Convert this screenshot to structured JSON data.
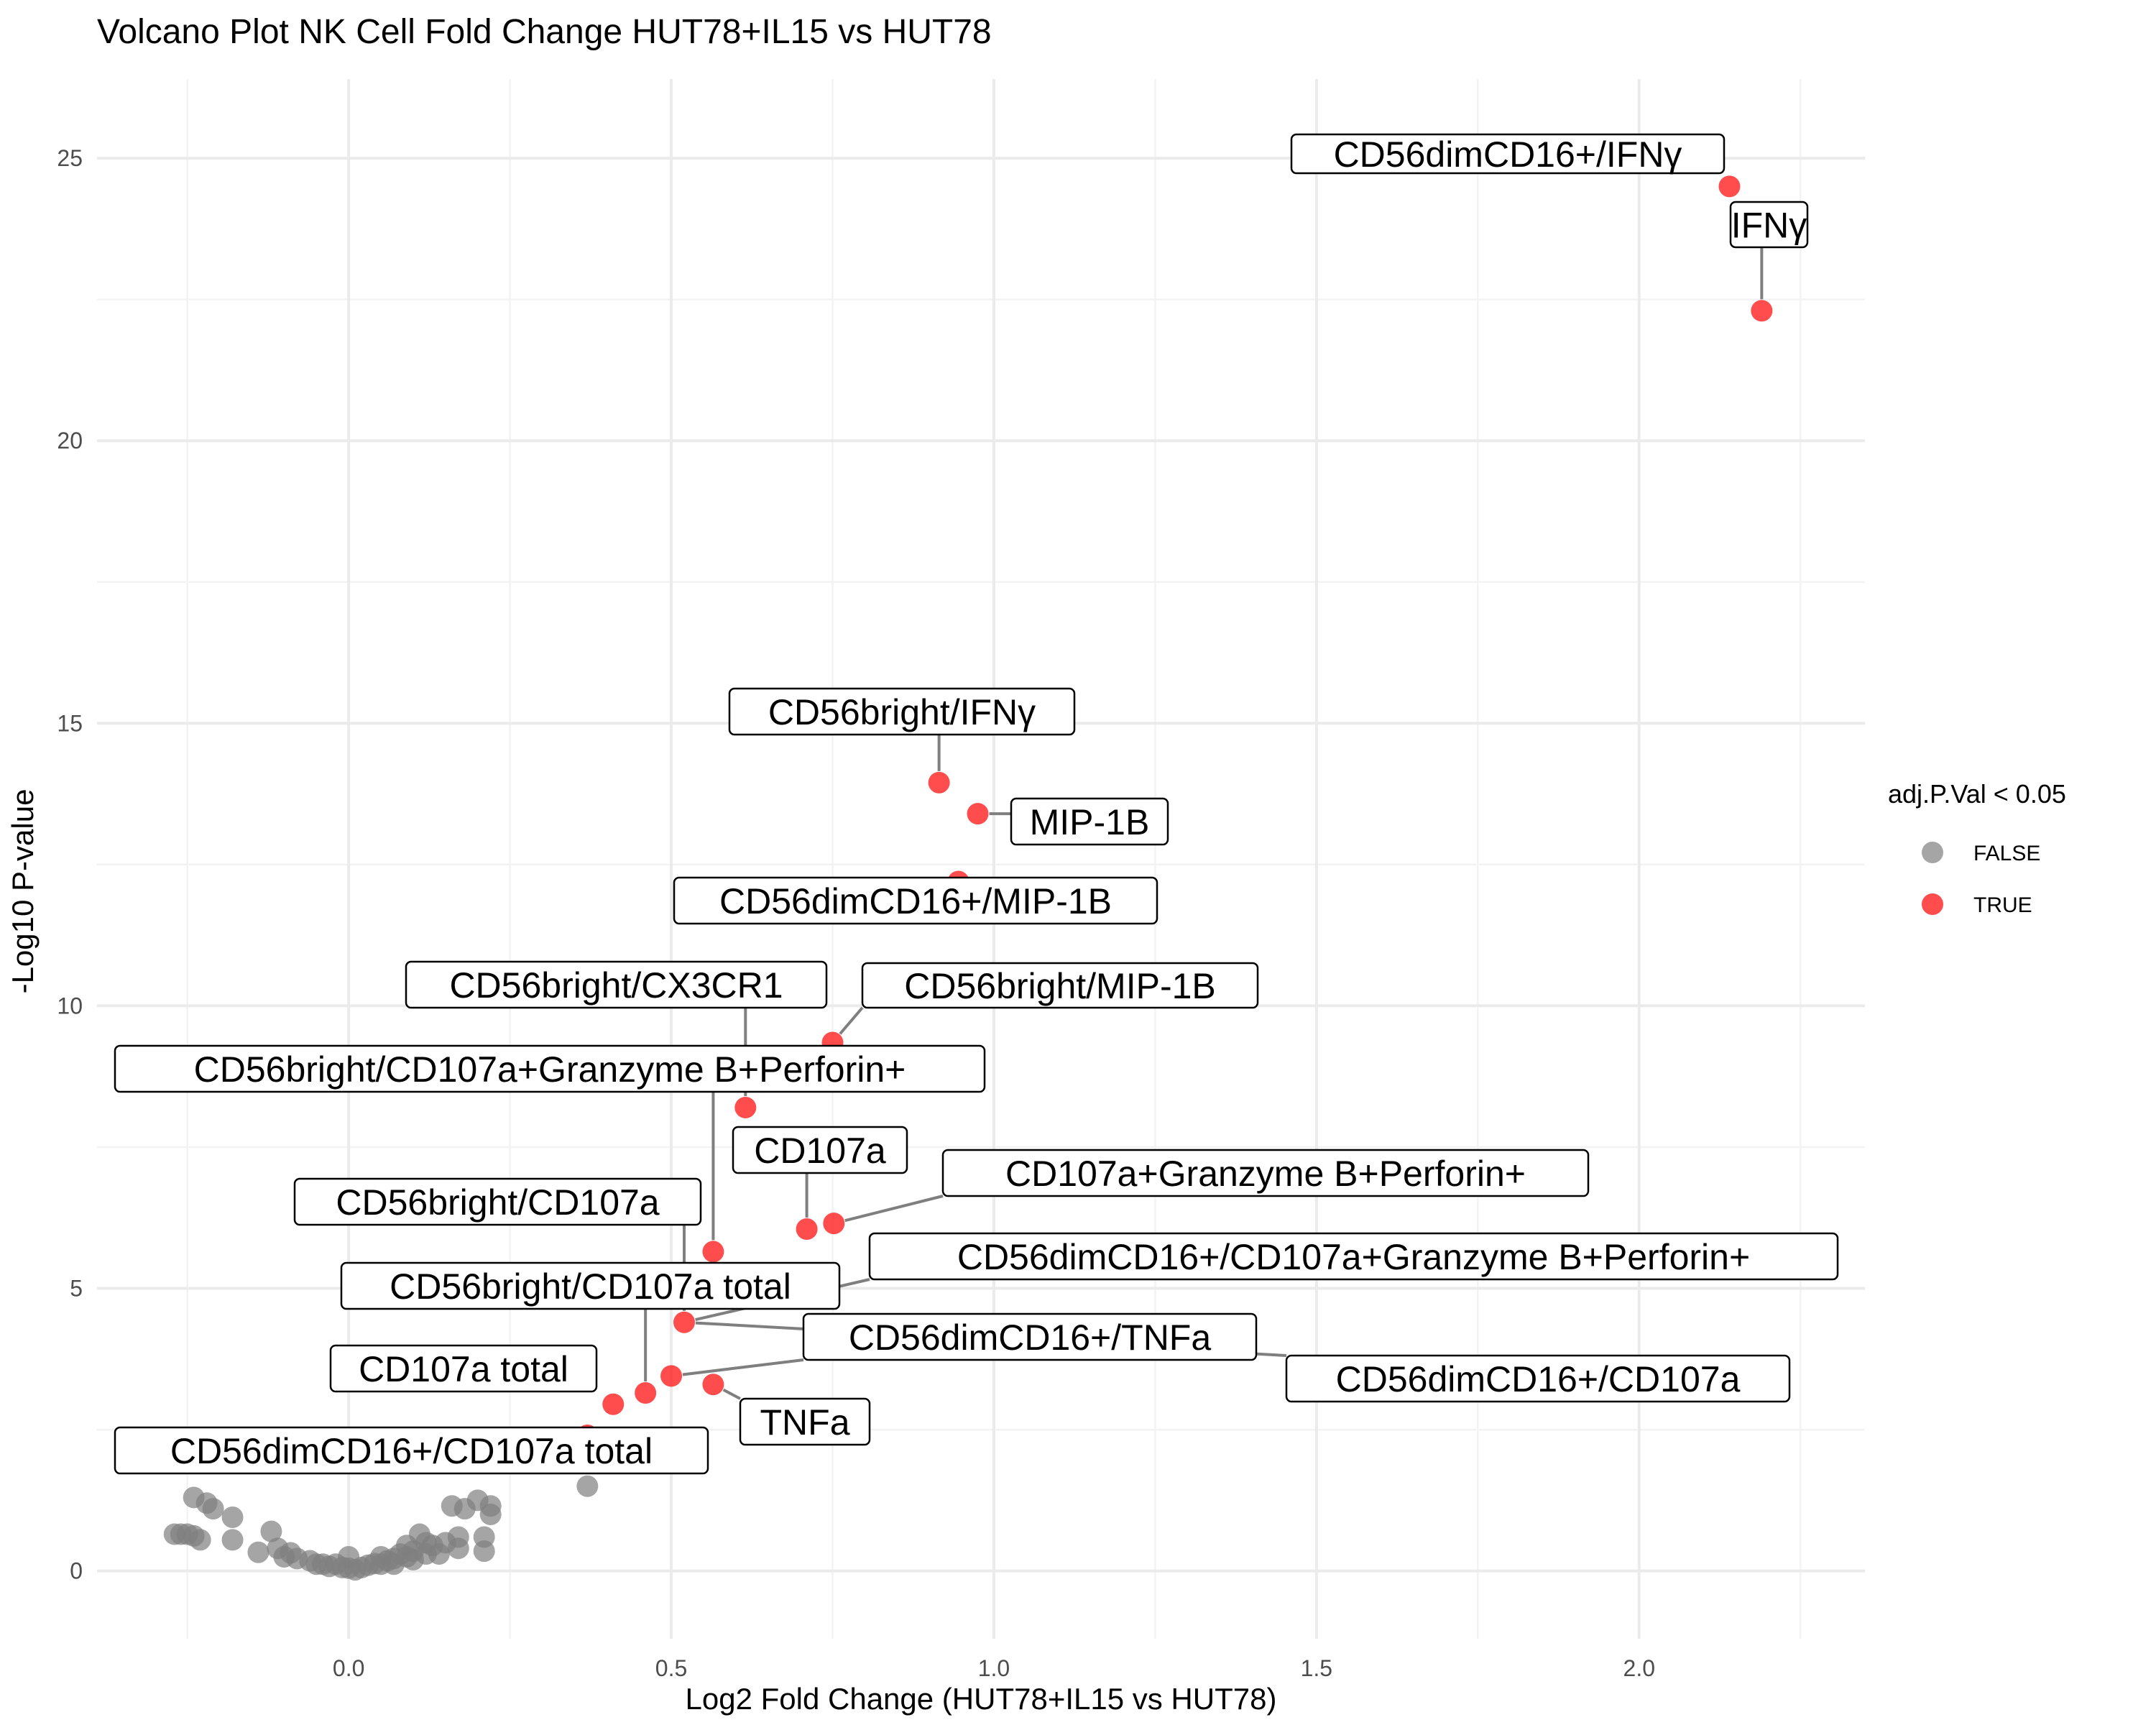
{
  "chart_data": {
    "type": "scatter",
    "title": "Volcano Plot NK Cell Fold Change  HUT78+IL15 vs HUT78",
    "xlabel": "Log2 Fold Change (HUT78+IL15 vs HUT78)",
    "ylabel": "-Log10 P-value",
    "xlim": [
      -0.39,
      2.35
    ],
    "ylim": [
      -1.2,
      26.4
    ],
    "x_ticks": [
      0.0,
      0.5,
      1.0,
      1.5,
      2.0
    ],
    "x_tick_labels": [
      "0.0",
      "0.5",
      "1.0",
      "1.5",
      "2.0"
    ],
    "y_ticks": [
      0,
      5,
      10,
      15,
      20,
      25
    ],
    "y_tick_labels": [
      "0",
      "5",
      "10",
      "15",
      "20",
      "25"
    ],
    "grid": true,
    "legend": {
      "title": "adj.P.Val < 0.05",
      "placement": "right",
      "entries": [
        {
          "label": "FALSE",
          "color": "#7f7f7f"
        },
        {
          "label": "TRUE",
          "color": "#ff0000"
        }
      ]
    },
    "colors": {
      "FALSE": "#7f7f7f",
      "TRUE": "#ff0000"
    },
    "series": [
      {
        "name": "FALSE",
        "points": [
          [
            -0.27,
            0.65
          ],
          [
            -0.26,
            0.65
          ],
          [
            -0.25,
            0.65
          ],
          [
            -0.24,
            0.62
          ],
          [
            -0.24,
            1.3
          ],
          [
            -0.23,
            0.55
          ],
          [
            -0.22,
            1.2
          ],
          [
            -0.21,
            1.1
          ],
          [
            -0.18,
            0.55
          ],
          [
            -0.18,
            0.95
          ],
          [
            -0.14,
            0.33
          ],
          [
            -0.12,
            0.7
          ],
          [
            -0.11,
            0.4
          ],
          [
            -0.1,
            0.25
          ],
          [
            -0.09,
            0.32
          ],
          [
            -0.08,
            0.22
          ],
          [
            -0.06,
            0.18
          ],
          [
            -0.05,
            0.12
          ],
          [
            -0.04,
            0.12
          ],
          [
            -0.03,
            0.08
          ],
          [
            -0.02,
            0.12
          ],
          [
            -0.01,
            0.06
          ],
          [
            0.0,
            0.25
          ],
          [
            0.0,
            0.05
          ],
          [
            0.01,
            0.02
          ],
          [
            0.02,
            0.06
          ],
          [
            0.03,
            0.1
          ],
          [
            0.04,
            0.13
          ],
          [
            0.05,
            0.12
          ],
          [
            0.05,
            0.25
          ],
          [
            0.06,
            0.18
          ],
          [
            0.07,
            0.22
          ],
          [
            0.07,
            0.12
          ],
          [
            0.08,
            0.3
          ],
          [
            0.09,
            0.25
          ],
          [
            0.09,
            0.45
          ],
          [
            0.1,
            0.35
          ],
          [
            0.1,
            0.2
          ],
          [
            0.11,
            0.65
          ],
          [
            0.12,
            0.5
          ],
          [
            0.12,
            0.3
          ],
          [
            0.13,
            0.45
          ],
          [
            0.14,
            0.3
          ],
          [
            0.15,
            0.5
          ],
          [
            0.16,
            1.15
          ],
          [
            0.17,
            0.4
          ],
          [
            0.17,
            0.6
          ],
          [
            0.18,
            1.1
          ],
          [
            0.2,
            1.25
          ],
          [
            0.21,
            0.35
          ],
          [
            0.21,
            0.6
          ],
          [
            0.22,
            1.15
          ],
          [
            0.22,
            1.0
          ],
          [
            0.37,
            1.5
          ]
        ]
      },
      {
        "name": "TRUE",
        "points": [
          [
            2.14,
            24.5
          ],
          [
            2.19,
            22.3
          ],
          [
            0.915,
            13.95
          ],
          [
            0.975,
            13.4
          ],
          [
            0.945,
            12.2
          ],
          [
            0.75,
            9.35
          ],
          [
            0.615,
            8.2
          ],
          [
            0.565,
            5.65
          ],
          [
            0.71,
            6.05
          ],
          [
            0.752,
            6.15
          ],
          [
            0.52,
            4.4
          ],
          [
            0.5,
            3.45
          ],
          [
            0.565,
            3.3
          ],
          [
            0.46,
            3.15
          ],
          [
            0.41,
            2.95
          ],
          [
            0.37,
            2.4
          ]
        ]
      }
    ],
    "labels": [
      {
        "text": "CD56dimCD16+/IFNγ",
        "x": 2.14,
        "y": 24.5
      },
      {
        "text": "IFNγ",
        "x": 2.19,
        "y": 22.3
      },
      {
        "text": "CD56bright/IFNγ",
        "x": 0.915,
        "y": 13.95
      },
      {
        "text": "MIP-1B",
        "x": 0.975,
        "y": 13.4
      },
      {
        "text": "CD56dimCD16+/MIP-1B",
        "x": 0.945,
        "y": 12.2
      },
      {
        "text": "CD56bright/CX3CR1",
        "x": 0.615,
        "y": 8.2
      },
      {
        "text": "CD56bright/MIP-1B",
        "x": 0.75,
        "y": 9.35
      },
      {
        "text": "CD56bright/CD107a+Granzyme B+Perforin+",
        "x": 0.565,
        "y": 5.65
      },
      {
        "text": "CD107a",
        "x": 0.71,
        "y": 6.05
      },
      {
        "text": "CD107a+Granzyme B+Perforin+",
        "x": 0.752,
        "y": 6.15
      },
      {
        "text": "CD56bright/CD107a",
        "x": 0.52,
        "y": 4.4
      },
      {
        "text": "CD56dimCD16+/CD107a+Granzyme B+Perforin+",
        "x": 0.52,
        "y": 4.4
      },
      {
        "text": "CD56bright/CD107a total",
        "x": 0.46,
        "y": 3.15
      },
      {
        "text": "CD56dimCD16+/TNFa",
        "x": 0.5,
        "y": 3.45
      },
      {
        "text": "CD56dimCD16+/CD107a",
        "x": 0.52,
        "y": 4.4
      },
      {
        "text": "CD107a total",
        "x": 0.41,
        "y": 2.95
      },
      {
        "text": "TNFa",
        "x": 0.565,
        "y": 3.3
      },
      {
        "text": "CD56dimCD16+/CD107a total",
        "x": 0.37,
        "y": 2.4
      }
    ]
  }
}
